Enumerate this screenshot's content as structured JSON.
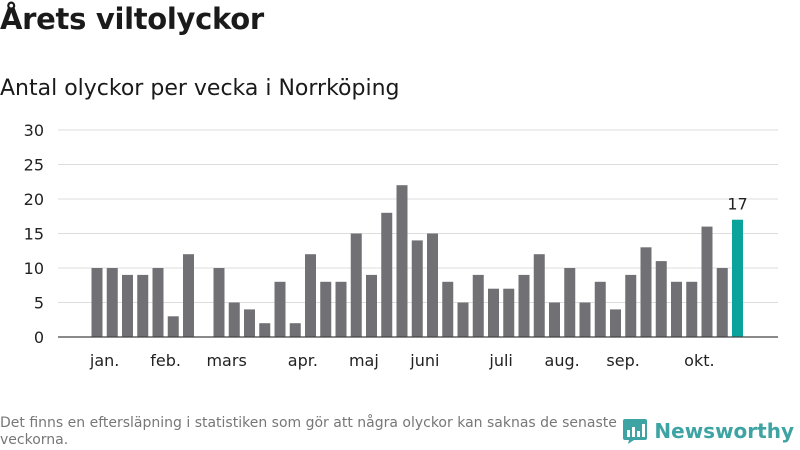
{
  "header": {
    "title": "Årets viltolyckor",
    "subtitle": "Antal olyckor per vecka i Norrköping"
  },
  "footer": {
    "note": "Det finns en eftersläpning i statistiken som gör att några olyckor kan saknas de senaste veckorna.",
    "brand": "Newsworthy"
  },
  "colors": {
    "bar": "#717075",
    "highlight": "#0aa39b",
    "grid": "#dddddd",
    "axis": "#444444",
    "brand": "#3ea3a3"
  },
  "chart_data": {
    "type": "bar",
    "title": "Antal olyckor per vecka i Norrköping",
    "xlabel": "",
    "ylabel": "",
    "ylim": [
      0,
      30
    ],
    "yticks": [
      0,
      5,
      10,
      15,
      20,
      25,
      30
    ],
    "grid": true,
    "weeks": [
      1,
      2,
      3,
      4,
      5,
      6,
      7,
      8,
      9,
      10,
      11,
      12,
      13,
      14,
      15,
      16,
      17,
      18,
      19,
      20,
      21,
      22,
      23,
      24,
      25,
      26,
      27,
      28,
      29,
      30,
      31,
      32,
      33,
      34,
      35,
      36,
      37,
      38,
      39,
      40,
      41,
      42,
      43
    ],
    "values": [
      10,
      10,
      9,
      9,
      10,
      3,
      12,
      0,
      10,
      5,
      4,
      2,
      8,
      2,
      12,
      8,
      8,
      15,
      9,
      18,
      22,
      14,
      15,
      8,
      5,
      9,
      7,
      7,
      9,
      12,
      5,
      10,
      5,
      8,
      4,
      9,
      13,
      11,
      8,
      8,
      16,
      10,
      17
    ],
    "month_labels": [
      {
        "label": "jan.",
        "week": 1.5
      },
      {
        "label": "feb.",
        "week": 5.5
      },
      {
        "label": "mars",
        "week": 9.5
      },
      {
        "label": "apr.",
        "week": 14.5
      },
      {
        "label": "maj",
        "week": 18.5
      },
      {
        "label": "juni",
        "week": 22.5
      },
      {
        "label": "juli",
        "week": 27.5
      },
      {
        "label": "aug.",
        "week": 31.5
      },
      {
        "label": "sep.",
        "week": 35.5
      },
      {
        "label": "okt.",
        "week": 40.5
      }
    ],
    "highlight": {
      "week": 43,
      "value": 17,
      "label": "17"
    }
  }
}
